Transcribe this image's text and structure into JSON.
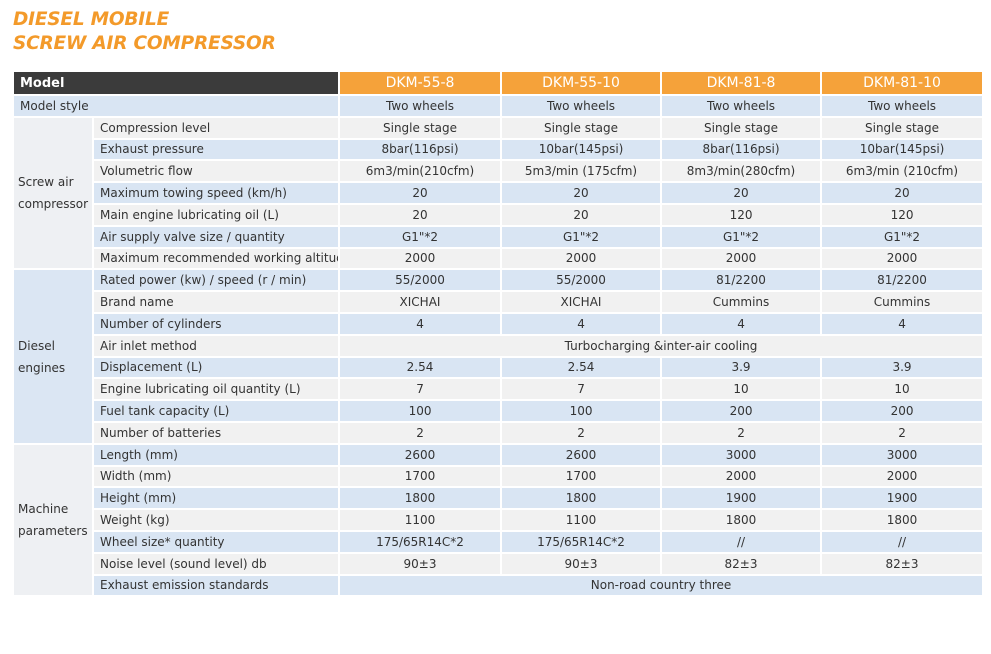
{
  "title": [
    "DIESEL MOBILE",
    "SCREW AIR COMPRESSOR"
  ],
  "table": {
    "header": {
      "label": "Model",
      "models": [
        "DKM-55-8",
        "DKM-55-10",
        "DKM-81-8",
        "DKM-81-10"
      ]
    },
    "model_style": {
      "label": "Model style",
      "values": [
        "Two wheels",
        "Two wheels",
        "Two wheels",
        "Two wheels"
      ]
    },
    "groups": [
      {
        "name": "Screw air compressor",
        "rows": [
          {
            "label": "Compression level",
            "values": [
              "Single stage",
              "Single stage",
              "Single stage",
              "Single stage"
            ]
          },
          {
            "label": "Exhaust pressure",
            "values": [
              "8bar(116psi)",
              "10bar(145psi)",
              "8bar(116psi)",
              "10bar(145psi)"
            ]
          },
          {
            "label": "Volumetric flow",
            "values": [
              "6m3/min(210cfm)",
              "5m3/min (175cfm)",
              "8m3/min(280cfm)",
              "6m3/min (210cfm)"
            ]
          },
          {
            "label": "Maximum towing speed (km/h)",
            "values": [
              "20",
              "20",
              "20",
              "20"
            ]
          },
          {
            "label": "Main engine lubricating oil (L)",
            "values": [
              "20",
              "20",
              "120",
              "120"
            ]
          },
          {
            "label": "Air supply valve size / quantity",
            "values": [
              "G1\"*2",
              "G1\"*2",
              "G1\"*2",
              "G1\"*2"
            ]
          },
          {
            "label": "Maximum recommended working altitude",
            "values": [
              "2000",
              "2000",
              "2000",
              "2000"
            ]
          }
        ]
      },
      {
        "name": "Diesel engines",
        "rows": [
          {
            "label": "Rated power (kw) / speed (r / min)",
            "values": [
              "55/2000",
              "55/2000",
              "81/2200",
              "81/2200"
            ]
          },
          {
            "label": "Brand name",
            "values": [
              "XICHAI",
              "XICHAI",
              "Cummins",
              "Cummins"
            ]
          },
          {
            "label": "Number of cylinders",
            "values": [
              "4",
              "4",
              "4",
              "4"
            ]
          },
          {
            "label": "Air inlet method",
            "values": [
              "Turbocharging &inter-air cooling"
            ]
          },
          {
            "label": "Displacement (L)",
            "values": [
              "2.54",
              "2.54",
              "3.9",
              "3.9"
            ]
          },
          {
            "label": "Engine lubricating oil quantity (L)",
            "values": [
              "7",
              "7",
              "10",
              "10"
            ]
          },
          {
            "label": "Fuel tank capacity (L)",
            "values": [
              "100",
              "100",
              "200",
              "200"
            ]
          },
          {
            "label": "Number of batteries",
            "values": [
              "2",
              "2",
              "2",
              "2"
            ]
          }
        ]
      },
      {
        "name": "Machine parameters",
        "rows": [
          {
            "label": "Length (mm)",
            "values": [
              "2600",
              "2600",
              "3000",
              "3000"
            ]
          },
          {
            "label": "Width (mm)",
            "values": [
              "1700",
              "1700",
              "2000",
              "2000"
            ]
          },
          {
            "label": "Height (mm)",
            "values": [
              "1800",
              "1800",
              "1900",
              "1900"
            ]
          },
          {
            "label": "Weight (kg)",
            "values": [
              "1100",
              "1100",
              "1800",
              "1800"
            ]
          },
          {
            "label": "Wheel size* quantity",
            "values": [
              "175/65R14C*2",
              "175/65R14C*2",
              "//",
              "//"
            ]
          },
          {
            "label": "Noise level (sound level) db",
            "values": [
              "90±3",
              "90±3",
              "82±3",
              "82±3"
            ]
          },
          {
            "label": "Exhaust emission standards",
            "values": [
              "Non-road country three"
            ]
          }
        ]
      }
    ]
  }
}
